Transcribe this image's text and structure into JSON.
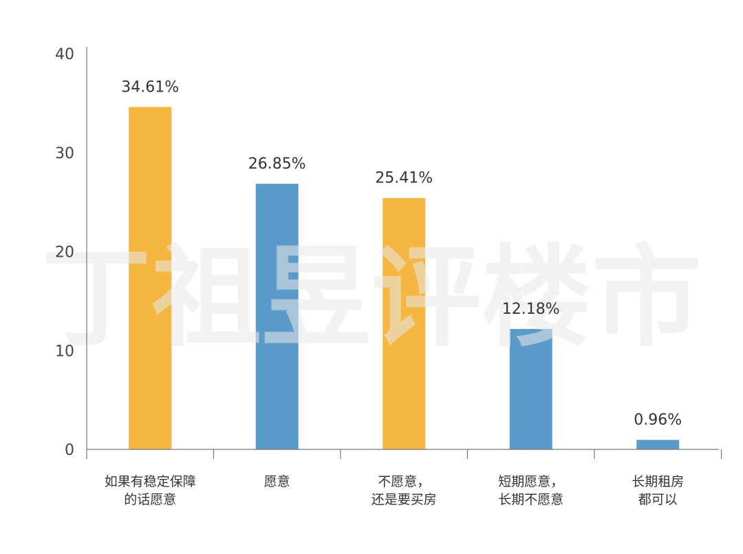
{
  "chart_data": {
    "type": "bar",
    "categories": [
      [
        "如果有稳定保障",
        "的话愿意"
      ],
      [
        "愿意"
      ],
      [
        "不愿意，",
        "还是要买房"
      ],
      [
        "短期愿意，",
        "长期不愿意"
      ],
      [
        "长期租房",
        "都可以"
      ]
    ],
    "values": [
      34.61,
      26.85,
      25.41,
      12.18,
      0.96
    ],
    "data_labels": [
      "34.61%",
      "26.85%",
      "25.41%",
      "12.18%",
      "0.96%"
    ],
    "bar_colors": [
      "#F5B642",
      "#5B9BC9",
      "#F5B642",
      "#5B9BC9",
      "#5B9BC9"
    ],
    "yticks": [
      "0",
      "10",
      "20",
      "30",
      "40"
    ],
    "ylim": [
      0,
      40
    ],
    "grid": false,
    "watermark": "丁祖昱评楼市"
  }
}
